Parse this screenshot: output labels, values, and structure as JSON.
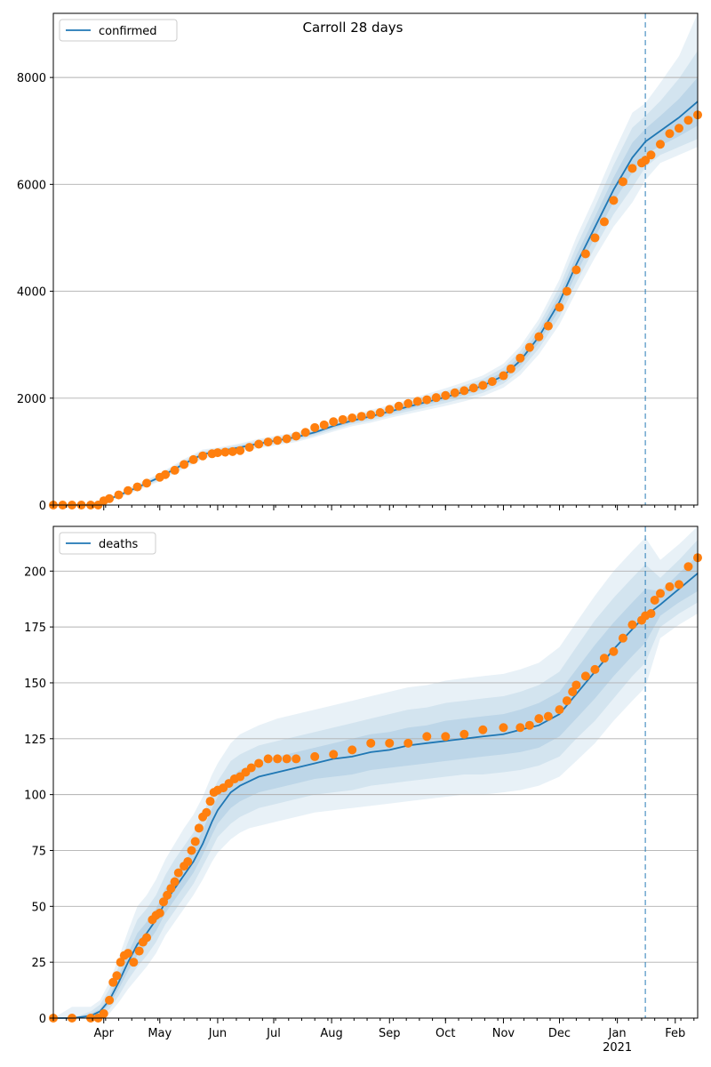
{
  "title": "Carroll 28 days",
  "colors": {
    "model_line": "#1f77b4",
    "observed": "#ff7f0e",
    "band": "#1f77b4",
    "grid": "#b0b0b0",
    "forecast_line": "#1f77b4"
  },
  "x_axis": {
    "ticks": [
      {
        "x": 67,
        "label": "Apr"
      },
      {
        "x": 97,
        "label": "May"
      },
      {
        "x": 128,
        "label": "Jun"
      },
      {
        "x": 158,
        "label": "Jul"
      },
      {
        "x": 189,
        "label": "Aug"
      },
      {
        "x": 220,
        "label": "Sep"
      },
      {
        "x": 250,
        "label": "Oct"
      },
      {
        "x": 281,
        "label": "Nov"
      },
      {
        "x": 311,
        "label": "Dec"
      },
      {
        "x": 342,
        "label": "Jan"
      },
      {
        "x": 373,
        "label": "Feb"
      }
    ],
    "year_label": "2021",
    "year_label_at": 342,
    "xlim": [
      40,
      385
    ],
    "x_unit": "day of year 2020 (366 = Jan 1 2021)"
  },
  "chart_data": [
    {
      "type": "line",
      "legend": "confirmed",
      "legend_position": "upper left",
      "grid": "y",
      "ylim": [
        0,
        9200
      ],
      "yticks": [
        0,
        2000,
        4000,
        6000,
        8000
      ],
      "forecast_start_x": 357,
      "model": {
        "x": [
          40,
          60,
          67,
          75,
          85,
          97,
          110,
          120,
          128,
          140,
          150,
          160,
          170,
          180,
          190,
          200,
          210,
          220,
          230,
          240,
          250,
          260,
          270,
          281,
          290,
          300,
          311,
          320,
          330,
          340,
          350,
          357,
          365,
          375,
          385
        ],
        "y": [
          0,
          0,
          80,
          180,
          330,
          520,
          770,
          950,
          1000,
          1080,
          1150,
          1210,
          1270,
          1360,
          1480,
          1580,
          1660,
          1750,
          1840,
          1930,
          2020,
          2120,
          2230,
          2420,
          2700,
          3150,
          3800,
          4500,
          5200,
          5900,
          6500,
          6800,
          7000,
          7250,
          7550
        ]
      },
      "bands": [
        {
          "name": "50%",
          "lower": [
            0,
            0,
            70,
            165,
            310,
            495,
            740,
            920,
            975,
            1055,
            1120,
            1180,
            1240,
            1330,
            1445,
            1545,
            1620,
            1710,
            1795,
            1880,
            1965,
            2060,
            2165,
            2345,
            2610,
            3040,
            3660,
            4330,
            5010,
            5670,
            6220,
            6560,
            6720,
            6900,
            7100
          ],
          "upper": [
            0,
            0,
            90,
            195,
            350,
            545,
            800,
            980,
            1025,
            1105,
            1180,
            1240,
            1300,
            1390,
            1515,
            1615,
            1700,
            1790,
            1885,
            1980,
            2075,
            2180,
            2295,
            2495,
            2790,
            3260,
            3940,
            4670,
            5390,
            6130,
            6780,
            7040,
            7280,
            7600,
            8000
          ]
        },
        {
          "name": "80%",
          "lower": [
            0,
            0,
            60,
            150,
            290,
            470,
            710,
            890,
            950,
            1030,
            1090,
            1150,
            1210,
            1300,
            1410,
            1510,
            1580,
            1670,
            1750,
            1830,
            1910,
            2000,
            2100,
            2270,
            2520,
            2930,
            3520,
            4160,
            4820,
            5440,
            5940,
            6320,
            6550,
            6700,
            6850
          ],
          "upper": [
            0,
            0,
            100,
            210,
            370,
            570,
            830,
            1010,
            1050,
            1130,
            1210,
            1270,
            1330,
            1420,
            1550,
            1650,
            1740,
            1830,
            1930,
            2030,
            2130,
            2240,
            2360,
            2570,
            2880,
            3370,
            4080,
            4840,
            5580,
            6360,
            7060,
            7280,
            7560,
            7980,
            8500
          ]
        },
        {
          "name": "95%",
          "lower": [
            0,
            0,
            50,
            135,
            270,
            445,
            680,
            860,
            925,
            1005,
            1060,
            1120,
            1180,
            1270,
            1375,
            1475,
            1540,
            1630,
            1705,
            1780,
            1855,
            1940,
            2035,
            2195,
            2430,
            2820,
            3380,
            3990,
            4630,
            5210,
            5660,
            6080,
            6400,
            6550,
            6700
          ],
          "upper": [
            0,
            0,
            110,
            225,
            390,
            595,
            860,
            1040,
            1075,
            1155,
            1240,
            1300,
            1360,
            1450,
            1585,
            1685,
            1780,
            1870,
            1975,
            2080,
            2185,
            2300,
            2425,
            2645,
            2970,
            3480,
            4220,
            5010,
            5770,
            6590,
            7340,
            7520,
            7900,
            8400,
            9200
          ]
        }
      ],
      "observed": {
        "x": [
          40,
          45,
          50,
          55,
          60,
          64,
          67,
          70,
          75,
          80,
          85,
          90,
          97,
          100,
          105,
          110,
          115,
          120,
          125,
          128,
          132,
          136,
          140,
          145,
          150,
          155,
          160,
          165,
          170,
          175,
          180,
          185,
          190,
          195,
          200,
          205,
          210,
          215,
          220,
          225,
          230,
          235,
          240,
          245,
          250,
          255,
          260,
          265,
          270,
          275,
          281,
          285,
          290,
          295,
          300,
          305,
          311,
          315,
          320,
          325,
          330,
          335,
          340,
          345,
          350,
          355,
          357,
          360,
          365,
          370,
          375,
          380,
          385
        ],
        "y": [
          0,
          0,
          0,
          0,
          0,
          0,
          80,
          120,
          190,
          270,
          340,
          410,
          520,
          570,
          650,
          760,
          850,
          920,
          960,
          980,
          990,
          1000,
          1020,
          1080,
          1140,
          1180,
          1210,
          1240,
          1290,
          1360,
          1450,
          1500,
          1560,
          1600,
          1630,
          1660,
          1690,
          1730,
          1790,
          1850,
          1900,
          1940,
          1970,
          2010,
          2050,
          2100,
          2140,
          2190,
          2240,
          2310,
          2420,
          2550,
          2750,
          2950,
          3150,
          3350,
          3700,
          4000,
          4400,
          4700,
          5000,
          5300,
          5700,
          6050,
          6300,
          6400,
          6450,
          6550,
          6750,
          6950,
          7050,
          7200,
          7300
        ]
      }
    },
    {
      "type": "line",
      "legend": "deaths",
      "legend_position": "upper left",
      "grid": "y",
      "ylim": [
        0,
        220
      ],
      "yticks": [
        0,
        25,
        50,
        75,
        100,
        125,
        150,
        175,
        200
      ],
      "forecast_start_x": 357,
      "model": {
        "x": [
          40,
          50,
          60,
          65,
          70,
          75,
          80,
          85,
          90,
          95,
          100,
          105,
          110,
          115,
          120,
          125,
          128,
          135,
          140,
          145,
          150,
          160,
          170,
          180,
          190,
          200,
          210,
          220,
          230,
          240,
          250,
          260,
          270,
          281,
          290,
          300,
          311,
          320,
          330,
          340,
          350,
          357,
          365,
          375,
          385
        ],
        "y": [
          0,
          0,
          1,
          3,
          8,
          16,
          25,
          33,
          38,
          44,
          52,
          58,
          64,
          70,
          78,
          88,
          93,
          101,
          104,
          106,
          108,
          110,
          112,
          114,
          116,
          117,
          119,
          120,
          122,
          123,
          124,
          125,
          126,
          127,
          129,
          131,
          136,
          145,
          155,
          165,
          174,
          180,
          185,
          192,
          199
        ]
      },
      "bands": [
        {
          "name": "50%",
          "lower": [
            0,
            0,
            0,
            2,
            6,
            13,
            21,
            28,
            33,
            39,
            47,
            53,
            59,
            65,
            73,
            82,
            87,
            94,
            97,
            99,
            101,
            103,
            105,
            107,
            108,
            109,
            111,
            112,
            113,
            114,
            115,
            116,
            117,
            118,
            119,
            121,
            126,
            134,
            143,
            153,
            162,
            168,
            180,
            186,
            191
          ],
          "upper": [
            0,
            0,
            2,
            4,
            10,
            19,
            29,
            38,
            43,
            49,
            58,
            64,
            70,
            76,
            84,
            94,
            99,
            108,
            111,
            113,
            115,
            117,
            119,
            121,
            123,
            125,
            127,
            128,
            130,
            131,
            133,
            134,
            135,
            136,
            138,
            141,
            146,
            156,
            167,
            177,
            186,
            192,
            191,
            199,
            207
          ]
        },
        {
          "name": "80%",
          "lower": [
            0,
            0,
            0,
            1,
            4,
            10,
            17,
            23,
            28,
            34,
            42,
            48,
            54,
            60,
            68,
            76,
            81,
            87,
            90,
            92,
            94,
            96,
            98,
            100,
            101,
            102,
            104,
            105,
            106,
            107,
            108,
            109,
            109,
            110,
            111,
            113,
            117,
            125,
            133,
            143,
            153,
            159,
            175,
            181,
            186
          ],
          "upper": [
            0,
            0,
            3,
            6,
            13,
            23,
            34,
            44,
            49,
            55,
            64,
            71,
            77,
            83,
            91,
            101,
            106,
            115,
            118,
            120,
            122,
            124,
            126,
            128,
            130,
            132,
            134,
            136,
            138,
            139,
            141,
            142,
            143,
            144,
            146,
            149,
            155,
            166,
            178,
            188,
            197,
            203,
            197,
            205,
            214
          ]
        },
        {
          "name": "95%",
          "lower": [
            0,
            0,
            0,
            0,
            2,
            7,
            13,
            18,
            23,
            29,
            37,
            43,
            49,
            55,
            62,
            70,
            74,
            80,
            83,
            85,
            86,
            88,
            90,
            92,
            93,
            94,
            95,
            96,
            97,
            98,
            99,
            100,
            100,
            101,
            102,
            104,
            108,
            115,
            123,
            133,
            142,
            148,
            170,
            176,
            181
          ],
          "upper": [
            0,
            5,
            5,
            8,
            16,
            27,
            39,
            50,
            55,
            62,
            71,
            78,
            85,
            91,
            99,
            109,
            114,
            123,
            127,
            129,
            131,
            134,
            136,
            138,
            140,
            142,
            144,
            146,
            148,
            149,
            151,
            152,
            153,
            154,
            156,
            159,
            166,
            177,
            189,
            200,
            209,
            215,
            205,
            212,
            220
          ]
        }
      ],
      "observed": {
        "x": [
          40,
          50,
          60,
          64,
          67,
          70,
          72,
          74,
          76,
          78,
          80,
          83,
          86,
          88,
          90,
          93,
          95,
          97,
          99,
          101,
          103,
          105,
          107,
          110,
          112,
          114,
          116,
          118,
          120,
          122,
          124,
          126,
          128,
          131,
          134,
          137,
          140,
          143,
          146,
          150,
          155,
          160,
          165,
          170,
          180,
          190,
          200,
          210,
          220,
          230,
          240,
          250,
          260,
          270,
          281,
          290,
          295,
          300,
          305,
          311,
          315,
          318,
          320,
          325,
          330,
          335,
          340,
          345,
          350,
          355,
          357,
          360,
          362,
          365,
          370,
          375,
          380,
          385
        ],
        "y": [
          0,
          0,
          0,
          0,
          2,
          8,
          16,
          19,
          25,
          28,
          29,
          25,
          30,
          34,
          36,
          44,
          46,
          47,
          52,
          55,
          58,
          61,
          65,
          68,
          70,
          75,
          79,
          85,
          90,
          92,
          97,
          101,
          102,
          103,
          105,
          107,
          108,
          110,
          112,
          114,
          116,
          116,
          116,
          116,
          117,
          118,
          120,
          123,
          123,
          123,
          126,
          126,
          127,
          129,
          130,
          130,
          131,
          134,
          135,
          138,
          142,
          146,
          149,
          153,
          156,
          161,
          164,
          170,
          176,
          178,
          180,
          181,
          187,
          190,
          193,
          194,
          202,
          206
        ]
      }
    }
  ]
}
